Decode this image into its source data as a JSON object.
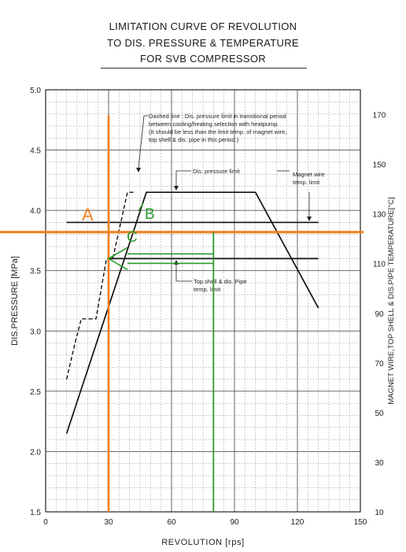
{
  "chart_data": {
    "type": "line",
    "title": [
      "LIMITATION CURVE OF REVOLUTION",
      "TO DIS. PRESSURE & TEMPERATURE",
      "FOR SVB COMPRESSOR"
    ],
    "xlabel": "REVOLUTION [rps]",
    "ylabel": "DIS.PRESSURE [MPa]",
    "y2label": "MAGNET WIRE,TOP SHELL & DIS.PIPE TEMPERATURE[°C]",
    "xlim": [
      0,
      150
    ],
    "ylim": [
      1.5,
      5.0
    ],
    "y2lim": [
      10,
      180
    ],
    "grid": true,
    "x_ticks": [
      "0",
      "30",
      "60",
      "90",
      "120",
      "150"
    ],
    "y_ticks": [
      "1.5",
      "2.0",
      "2.5",
      "3.0",
      "3.5",
      "4.0",
      "4.5",
      "5.0"
    ],
    "y2_ticks": [
      "10",
      "30",
      "50",
      "70",
      "90",
      "110",
      "130",
      "150",
      "170"
    ],
    "series": [
      {
        "key": "dis",
        "style": "solid",
        "x": [
          10,
          41,
          48,
          100,
          130
        ],
        "y": [
          2.15,
          3.78,
          4.15,
          4.15,
          3.19
        ]
      },
      {
        "key": "dashed",
        "style": "dashed",
        "x": [
          10,
          14,
          17,
          19,
          24,
          26,
          29,
          32,
          39,
          43
        ],
        "y": [
          2.6,
          2.9,
          3.1,
          3.1,
          3.1,
          3.3,
          3.6,
          3.6,
          4.15,
          4.15
        ]
      },
      {
        "key": "magnet",
        "style": "solid",
        "x": [
          10,
          130
        ],
        "y": [
          3.9,
          3.9
        ]
      },
      {
        "key": "topshell",
        "style": "solid",
        "x": [
          30,
          130
        ],
        "y": [
          3.6,
          3.6
        ]
      }
    ],
    "annotations": [
      {
        "key": "dashed_note",
        "lines": [
          "Dashed line : Dis. pressure limit in transitional period",
          "between cooling/heating selection with heatpump.",
          "(It should be less than the limit temp. of magnet wire,",
          "top shell & dis. pipe in this period.)"
        ]
      },
      {
        "key": "dis_note",
        "lines": [
          "Dis. pressure limit"
        ]
      },
      {
        "key": "magnet_note",
        "lines": [
          "Magnet wire",
          "temp. limit"
        ]
      },
      {
        "key": "topshell_note",
        "lines": [
          "Top shell & dis. Pipe",
          "temp. limit"
        ]
      }
    ],
    "overlay": {
      "orange_x": 30,
      "orange_y": 3.82,
      "green_x": 80,
      "orange_color": "#f07f1e",
      "green_color": "#2a9a2a",
      "label_a": "A",
      "label_b": "B",
      "label_c": "C"
    }
  }
}
